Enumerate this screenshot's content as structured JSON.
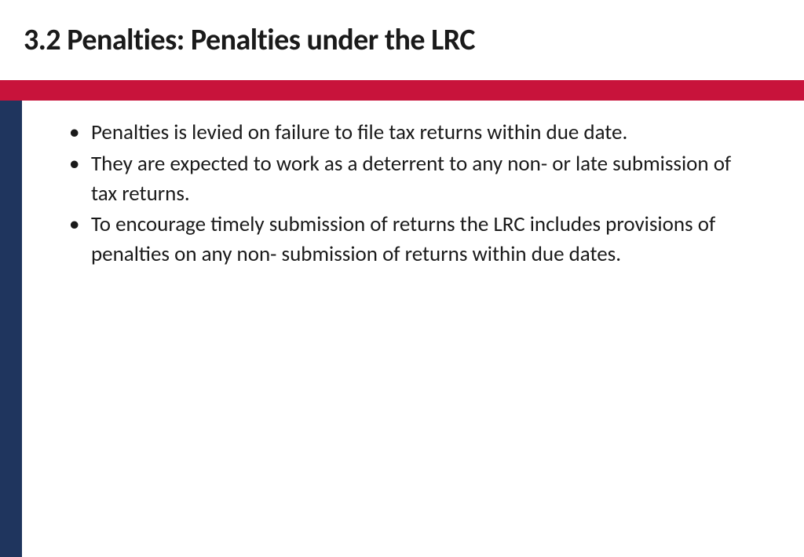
{
  "slide": {
    "title": "3.2 Penalties: Penalties under the LRC",
    "bullets": [
      "Penalties is levied on failure to file tax returns within due date.",
      "They are expected to work as a deterrent to any non- or late submission of tax returns.",
      "To encourage timely submission of returns the LRC includes provisions of penalties on any non- submission of returns within due dates."
    ],
    "colors": {
      "red_bar": "#c8133b",
      "blue_bar": "#1f355e",
      "title_text": "#1a1a1a",
      "body_text": "#1a1a1a",
      "background": "#ffffff"
    },
    "typography": {
      "title_fontsize": 38,
      "title_weight": 700,
      "body_fontsize": 27,
      "body_weight": 400
    },
    "layout": {
      "red_bar_height": 26,
      "blue_bar_width": 28
    }
  }
}
